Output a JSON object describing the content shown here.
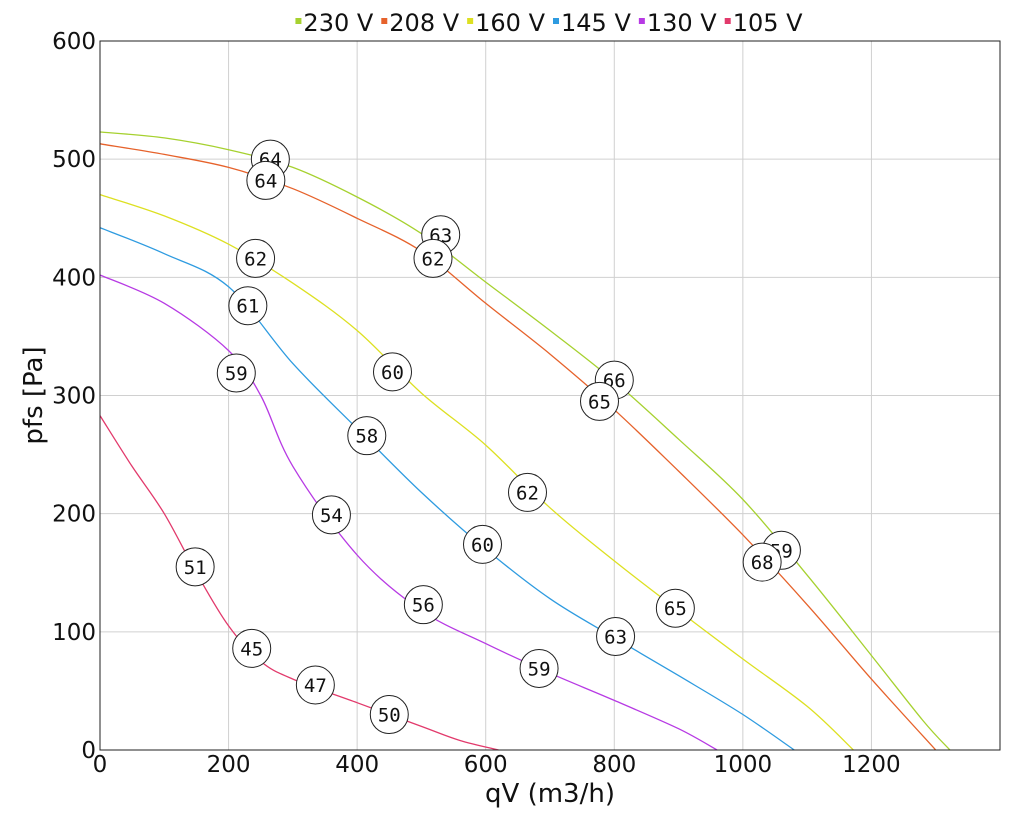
{
  "chart_data": {
    "type": "line",
    "title": "",
    "xlabel": "qV (m3/h)",
    "ylabel": "pfs [Pa]",
    "xlim": [
      0,
      1400
    ],
    "ylim": [
      0,
      600
    ],
    "xticks": [
      0,
      200,
      400,
      600,
      800,
      1000,
      1200
    ],
    "yticks": [
      0,
      100,
      200,
      300,
      400,
      500,
      600
    ],
    "grid": true,
    "legend_position": "top",
    "series": [
      {
        "name": "230 V",
        "color": "#a6d12f",
        "points": [
          [
            0,
            523
          ],
          [
            100,
            518
          ],
          [
            200,
            508
          ],
          [
            300,
            493
          ],
          [
            400,
            468
          ],
          [
            500,
            437
          ],
          [
            600,
            396
          ],
          [
            700,
            355
          ],
          [
            800,
            312
          ],
          [
            900,
            263
          ],
          [
            1000,
            212
          ],
          [
            1100,
            148
          ],
          [
            1200,
            80
          ],
          [
            1280,
            25
          ],
          [
            1322,
            0
          ]
        ],
        "labels": [
          {
            "x": 265,
            "y": 500,
            "text": "64"
          },
          {
            "x": 530,
            "y": 436,
            "text": "63"
          },
          {
            "x": 800,
            "y": 313,
            "text": "66"
          },
          {
            "x": 1060,
            "y": 169,
            "text": "59"
          }
        ]
      },
      {
        "name": "208 V",
        "color": "#e6622b",
        "points": [
          [
            0,
            513
          ],
          [
            100,
            504
          ],
          [
            200,
            493
          ],
          [
            300,
            475
          ],
          [
            400,
            450
          ],
          [
            500,
            422
          ],
          [
            600,
            378
          ],
          [
            700,
            335
          ],
          [
            800,
            288
          ],
          [
            900,
            236
          ],
          [
            1000,
            182
          ],
          [
            1100,
            123
          ],
          [
            1200,
            60
          ],
          [
            1300,
            0
          ]
        ],
        "labels": [
          {
            "x": 258,
            "y": 482,
            "text": "64"
          },
          {
            "x": 518,
            "y": 416,
            "text": "62"
          },
          {
            "x": 777,
            "y": 295,
            "text": "65"
          },
          {
            "x": 1030,
            "y": 159,
            "text": "68"
          }
        ]
      },
      {
        "name": "160 V",
        "color": "#dde021",
        "points": [
          [
            0,
            470
          ],
          [
            100,
            452
          ],
          [
            200,
            428
          ],
          [
            300,
            395
          ],
          [
            400,
            355
          ],
          [
            500,
            302
          ],
          [
            600,
            258
          ],
          [
            700,
            205
          ],
          [
            800,
            160
          ],
          [
            900,
            118
          ],
          [
            1000,
            77
          ],
          [
            1100,
            37
          ],
          [
            1172,
            0
          ]
        ],
        "labels": [
          {
            "x": 242,
            "y": 416,
            "text": "62"
          },
          {
            "x": 455,
            "y": 320,
            "text": "60"
          },
          {
            "x": 665,
            "y": 218,
            "text": "62"
          },
          {
            "x": 895,
            "y": 120,
            "text": "65"
          }
        ]
      },
      {
        "name": "145 V",
        "color": "#2e9be0",
        "points": [
          [
            0,
            442
          ],
          [
            100,
            420
          ],
          [
            200,
            392
          ],
          [
            300,
            327
          ],
          [
            400,
            272
          ],
          [
            500,
            218
          ],
          [
            600,
            170
          ],
          [
            700,
            128
          ],
          [
            800,
            95
          ],
          [
            900,
            63
          ],
          [
            1000,
            30
          ],
          [
            1080,
            0
          ]
        ],
        "labels": [
          {
            "x": 230,
            "y": 376,
            "text": "61"
          },
          {
            "x": 415,
            "y": 266,
            "text": "58"
          },
          {
            "x": 595,
            "y": 174,
            "text": "60"
          },
          {
            "x": 802,
            "y": 96,
            "text": "63"
          }
        ]
      },
      {
        "name": "130 V",
        "color": "#b73ae4",
        "points": [
          [
            0,
            402
          ],
          [
            100,
            378
          ],
          [
            200,
            338
          ],
          [
            250,
            300
          ],
          [
            300,
            240
          ],
          [
            400,
            165
          ],
          [
            500,
            118
          ],
          [
            600,
            90
          ],
          [
            700,
            65
          ],
          [
            800,
            42
          ],
          [
            900,
            18
          ],
          [
            960,
            0
          ]
        ],
        "labels": [
          {
            "x": 212,
            "y": 319,
            "text": "59"
          },
          {
            "x": 360,
            "y": 199,
            "text": "54"
          },
          {
            "x": 503,
            "y": 123,
            "text": "56"
          },
          {
            "x": 683,
            "y": 69,
            "text": "59"
          }
        ]
      },
      {
        "name": "105 V",
        "color": "#e23a6c",
        "points": [
          [
            0,
            283
          ],
          [
            50,
            240
          ],
          [
            100,
            200
          ],
          [
            150,
            150
          ],
          [
            200,
            105
          ],
          [
            250,
            75
          ],
          [
            300,
            60
          ],
          [
            400,
            40
          ],
          [
            500,
            20
          ],
          [
            560,
            8
          ],
          [
            620,
            0
          ]
        ],
        "labels": [
          {
            "x": 148,
            "y": 155,
            "text": "51"
          },
          {
            "x": 236,
            "y": 86,
            "text": "45"
          },
          {
            "x": 335,
            "y": 55,
            "text": "47"
          },
          {
            "x": 450,
            "y": 30,
            "text": "50"
          }
        ]
      }
    ]
  }
}
